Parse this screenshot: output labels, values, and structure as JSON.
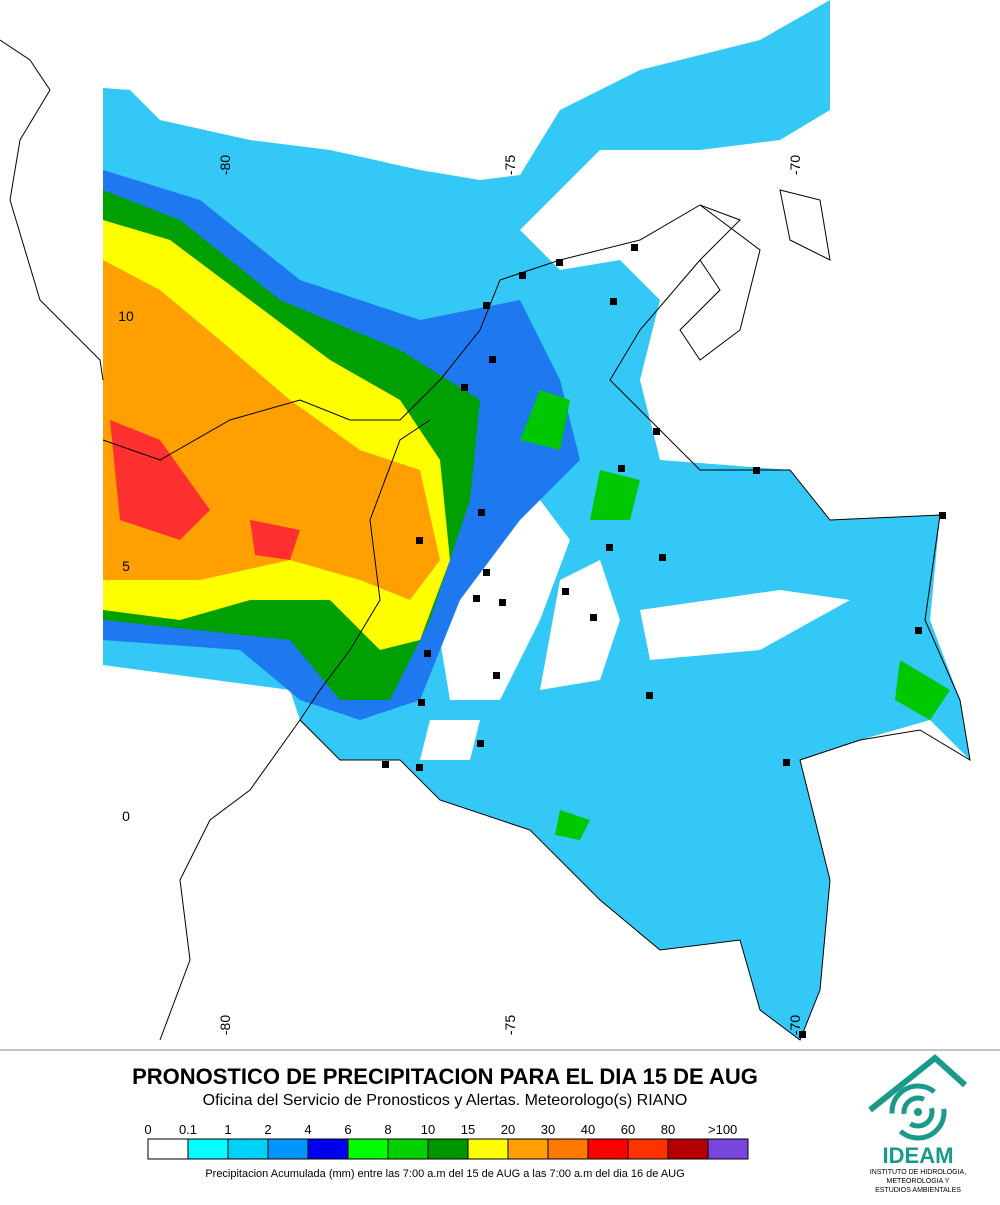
{
  "map": {
    "lon_labels_top": [
      "-80",
      "-75",
      "-70"
    ],
    "lon_labels_bottom": [
      "-80",
      "-75",
      "-70"
    ],
    "lat_labels": [
      "10",
      "5",
      "0"
    ]
  },
  "header": {
    "title": "PRONOSTICO DE PRECIPITACION PARA EL DIA 15 DE AUG",
    "subtitle": "Oficina del Servicio de Pronosticos y Alertas. Meteorologo(s) RIANO"
  },
  "legend": {
    "labels": [
      "0",
      "0.1",
      "1",
      "2",
      "4",
      "6",
      "8",
      "10",
      "15",
      "20",
      "30",
      "40",
      "60",
      "80",
      ">100"
    ],
    "colors": [
      "#ffffff",
      "#00ffff",
      "#00d2f5",
      "#0096ff",
      "#0000f0",
      "#00ff00",
      "#00d200",
      "#009600",
      "#ffff00",
      "#ffa000",
      "#ff7800",
      "#ff0000",
      "#ff3200",
      "#b40000",
      "#7846dc"
    ],
    "note": "Precipitacion Acumulada (mm) entre las 7:00 a.m del 15 de AUG a las 7:00 a.m del dia 16 de AUG"
  },
  "logo": {
    "name": "IDEAM",
    "lines": [
      "INSTITUTO DE HIDROLOGIA,",
      "METEOROLOGIA Y",
      "ESTUDIOS AMBIENTALES"
    ]
  }
}
